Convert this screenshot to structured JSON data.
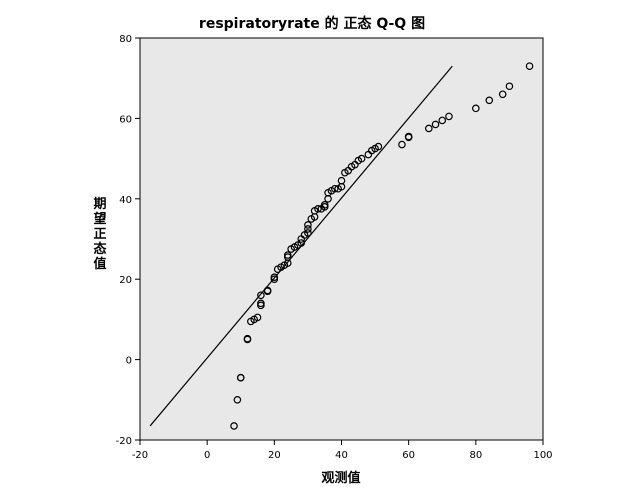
{
  "chart_data": {
    "type": "scatter",
    "title": "respiratoryrate 的 正态 Q-Q 图",
    "xlabel": "观测值",
    "ylabel": "期望正态值",
    "xlim": [
      -20,
      100
    ],
    "ylim": [
      -20,
      80
    ],
    "x_ticks": [
      -20,
      0,
      20,
      40,
      60,
      80,
      100
    ],
    "y_ticks": [
      -20,
      0,
      20,
      40,
      60,
      80
    ],
    "grid": false,
    "plot_background": "#e8e8e8",
    "marker": "open-circle",
    "reference_line": {
      "x": [
        -17,
        73
      ],
      "y": [
        -16.5,
        73
      ]
    },
    "points": [
      [
        8,
        -16.5
      ],
      [
        9,
        -10
      ],
      [
        10,
        -4.5
      ],
      [
        10,
        -4.5
      ],
      [
        12,
        5
      ],
      [
        12,
        5.2
      ],
      [
        13,
        9.5
      ],
      [
        14,
        10
      ],
      [
        15,
        10.5
      ],
      [
        16,
        13.5
      ],
      [
        16,
        14
      ],
      [
        16,
        16
      ],
      [
        18,
        17
      ],
      [
        18,
        17.2
      ],
      [
        20,
        20
      ],
      [
        20,
        20.5
      ],
      [
        21,
        22.5
      ],
      [
        22,
        23
      ],
      [
        23,
        23.5
      ],
      [
        24,
        24
      ],
      [
        24,
        25.5
      ],
      [
        24,
        26
      ],
      [
        25,
        27.5
      ],
      [
        26,
        28
      ],
      [
        27,
        28.5
      ],
      [
        28,
        29
      ],
      [
        28,
        30
      ],
      [
        29,
        31
      ],
      [
        30,
        31.5
      ],
      [
        30,
        32.5
      ],
      [
        30,
        33.5
      ],
      [
        31,
        35
      ],
      [
        32,
        35.5
      ],
      [
        32,
        37
      ],
      [
        33,
        37.5
      ],
      [
        34,
        37.5
      ],
      [
        35,
        38
      ],
      [
        35,
        38.5
      ],
      [
        36,
        40
      ],
      [
        36,
        41.5
      ],
      [
        37,
        42
      ],
      [
        38,
        42.5
      ],
      [
        39,
        42.5
      ],
      [
        40,
        43
      ],
      [
        40,
        44.5
      ],
      [
        41,
        46.5
      ],
      [
        42,
        47
      ],
      [
        43,
        48
      ],
      [
        44,
        48.5
      ],
      [
        45,
        49.5
      ],
      [
        46,
        50
      ],
      [
        48,
        51
      ],
      [
        49,
        52
      ],
      [
        50,
        52.5
      ],
      [
        51,
        53
      ],
      [
        58,
        53.5
      ],
      [
        60,
        55.5
      ],
      [
        60,
        55.3
      ],
      [
        66,
        57.5
      ],
      [
        68,
        58.5
      ],
      [
        70,
        59.5
      ],
      [
        72,
        60.5
      ],
      [
        80,
        62.5
      ],
      [
        84,
        64.5
      ],
      [
        88,
        66
      ],
      [
        90,
        68
      ],
      [
        96,
        73
      ]
    ]
  }
}
